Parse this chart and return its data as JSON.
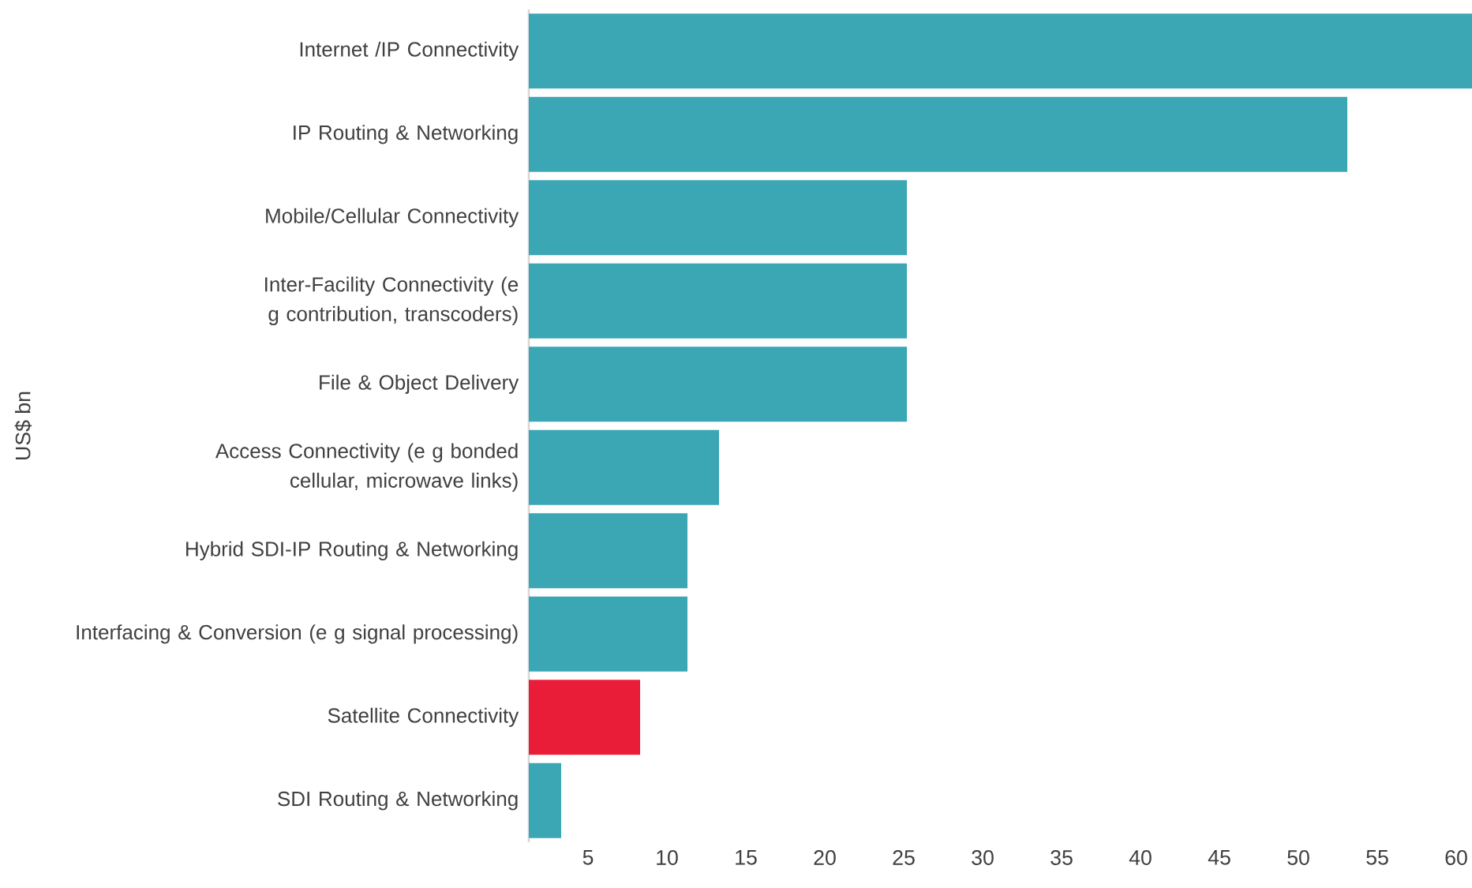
{
  "chart_data": {
    "type": "bar",
    "orientation": "horizontal",
    "ylabel": "US$ bn",
    "categories": [
      "Internet /IP Connectivity",
      "IP Routing & Networking",
      "Mobile/Cellular Connectivity",
      "Inter-Facility Connectivity (e g contribution, transcoders)",
      "File & Object Delivery",
      "Access Connectivity (e g bonded cellular, microwave links)",
      "Hybrid SDI-IP Routing & Networking",
      "Interfacing & Conversion (e g signal processing)",
      "Satellite Connectivity",
      "SDI Routing & Networking"
    ],
    "values": [
      61,
      53.1,
      25.2,
      25.2,
      25.2,
      13.3,
      11.3,
      11.3,
      8.3,
      3.3
    ],
    "colors": [
      "#3ba6b4",
      "#3ba6b4",
      "#3ba6b4",
      "#3ba6b4",
      "#3ba6b4",
      "#3ba6b4",
      "#3ba6b4",
      "#3ba6b4",
      "#ea1d39",
      "#3ba6b4"
    ],
    "xlim": [
      1.25,
      61
    ],
    "xticks": [
      5,
      10,
      15,
      20,
      25,
      30,
      35,
      40,
      45,
      50,
      55,
      60
    ]
  }
}
